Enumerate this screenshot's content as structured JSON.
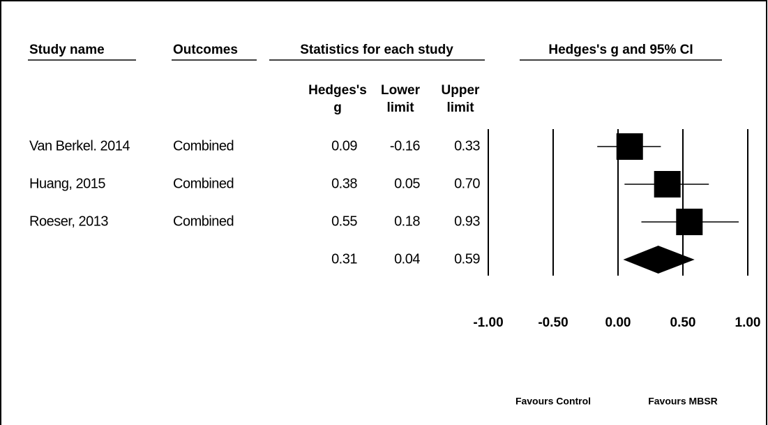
{
  "chart_data": {
    "type": "forest",
    "headers": {
      "study": "Study name",
      "outcome": "Outcomes",
      "stats": "Statistics for each study",
      "plot": "Hedges's g and 95% CI"
    },
    "subheaders": [
      "Hedges's g",
      "Lower limit",
      "Upper limit"
    ],
    "rows": [
      {
        "study": "Van Berkel. 2014",
        "outcome": "Combined",
        "values": [
          0.09,
          -0.16,
          0.33
        ],
        "value_labels": [
          "0.09",
          "-0.16",
          "0.33"
        ]
      },
      {
        "study": "Huang, 2015",
        "outcome": "Combined",
        "values": [
          0.38,
          0.05,
          0.7
        ],
        "value_labels": [
          "0.38",
          "0.05",
          "0.70"
        ]
      },
      {
        "study": "Roeser, 2013",
        "outcome": "Combined",
        "values": [
          0.55,
          0.18,
          0.93
        ],
        "value_labels": [
          "0.55",
          "0.18",
          "0.93"
        ]
      }
    ],
    "summary": {
      "values": [
        0.31,
        0.04,
        0.59
      ],
      "value_labels": [
        "0.31",
        "0.04",
        "0.59"
      ]
    },
    "xlim": [
      -1,
      1
    ],
    "xticks": [
      {
        "value": -1,
        "label": "-1.00"
      },
      {
        "value": -0.5,
        "label": "-0.50"
      },
      {
        "value": 0,
        "label": "0.00"
      },
      {
        "value": 0.5,
        "label": "0.50"
      },
      {
        "value": 1,
        "label": "1.00"
      }
    ],
    "favours_left": "Favours Control",
    "favours_right": "Favours MBSR",
    "color": "#000000"
  }
}
